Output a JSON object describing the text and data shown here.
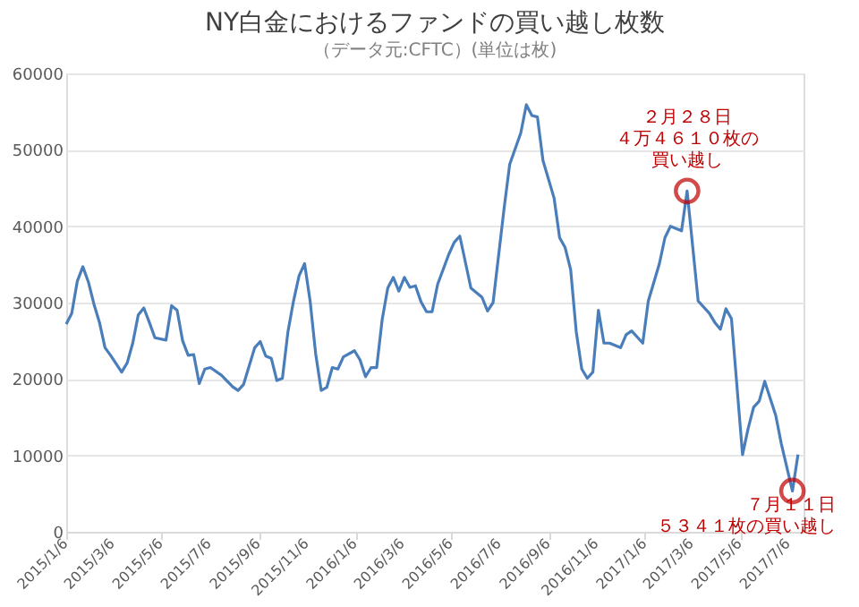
{
  "chart_data": {
    "type": "line",
    "title": "NY白金におけるファンドの買い越し枚数",
    "subtitle": "（データ元:CFTC）(単位は枚)",
    "x": [
      "2015-01-06",
      "2015-01-13",
      "2015-01-20",
      "2015-01-27",
      "2015-02-03",
      "2015-02-10",
      "2015-02-17",
      "2015-02-24",
      "2015-03-03",
      "2015-03-17",
      "2015-03-24",
      "2015-03-31",
      "2015-04-07",
      "2015-04-14",
      "2015-04-21",
      "2015-04-28",
      "2015-05-12",
      "2015-05-19",
      "2015-05-26",
      "2015-06-02",
      "2015-06-09",
      "2015-06-16",
      "2015-06-23",
      "2015-06-30",
      "2015-07-07",
      "2015-07-21",
      "2015-08-04",
      "2015-08-11",
      "2015-08-18",
      "2015-08-25",
      "2015-09-01",
      "2015-09-08",
      "2015-09-15",
      "2015-09-22",
      "2015-09-29",
      "2015-10-06",
      "2015-10-13",
      "2015-10-20",
      "2015-10-27",
      "2015-11-03",
      "2015-11-10",
      "2015-11-17",
      "2015-11-24",
      "2015-12-01",
      "2015-12-08",
      "2015-12-15",
      "2015-12-22",
      "2016-01-05",
      "2016-01-12",
      "2016-01-19",
      "2016-01-26",
      "2016-02-02",
      "2016-02-09",
      "2016-02-16",
      "2016-02-23",
      "2016-03-01",
      "2016-03-08",
      "2016-03-15",
      "2016-03-22",
      "2016-03-29",
      "2016-04-05",
      "2016-04-12",
      "2016-04-19",
      "2016-05-03",
      "2016-05-10",
      "2016-05-17",
      "2016-05-31",
      "2016-06-14",
      "2016-06-21",
      "2016-06-28",
      "2016-07-12",
      "2016-07-19",
      "2016-08-02",
      "2016-08-09",
      "2016-08-16",
      "2016-08-23",
      "2016-08-30",
      "2016-09-13",
      "2016-09-20",
      "2016-09-27",
      "2016-10-04",
      "2016-10-11",
      "2016-10-18",
      "2016-10-25",
      "2016-11-01",
      "2016-11-08",
      "2016-11-15",
      "2016-11-22",
      "2016-12-06",
      "2016-12-13",
      "2016-12-20",
      "2017-01-03",
      "2017-01-10",
      "2017-01-24",
      "2017-01-31",
      "2017-02-07",
      "2017-02-21",
      "2017-02-28",
      "2017-03-14",
      "2017-03-28",
      "2017-04-04",
      "2017-04-11",
      "2017-04-18",
      "2017-04-25",
      "2017-05-09",
      "2017-05-16",
      "2017-05-23",
      "2017-05-30",
      "2017-06-06",
      "2017-06-20",
      "2017-06-27",
      "2017-07-11",
      "2017-07-18"
    ],
    "series": [
      {
        "color": "#4a7ebb",
        "values": [
          27200,
          28600,
          32800,
          34700,
          32700,
          29800,
          27400,
          24100,
          23100,
          20900,
          22100,
          24700,
          28400,
          29300,
          27400,
          25400,
          25100,
          29600,
          29000,
          25000,
          23100,
          23200,
          19400,
          21300,
          21500,
          20500,
          19000,
          18500,
          19300,
          21700,
          24100,
          24900,
          23000,
          22700,
          19800,
          20100,
          26200,
          30200,
          33500,
          35100,
          30200,
          23300,
          18500,
          18900,
          21500,
          21300,
          22900,
          23700,
          22500,
          20300,
          21500,
          21500,
          27800,
          31900,
          33300,
          31500,
          33300,
          32000,
          32200,
          30100,
          28800,
          28800,
          32400,
          36300,
          37900,
          38700,
          31900,
          30700,
          28900,
          30000,
          42400,
          48100,
          52200,
          55900,
          54500,
          54300,
          48600,
          43700,
          38500,
          37200,
          34300,
          26200,
          21300,
          20100,
          20900,
          29000,
          24700,
          24700,
          24100,
          25800,
          26300,
          24700,
          30200,
          35100,
          38500,
          40000,
          39400,
          44610,
          30200,
          28600,
          27400,
          26500,
          29200,
          27900,
          10100,
          13500,
          16300,
          17100,
          19700,
          15200,
          11500,
          5341,
          10100
        ]
      }
    ],
    "xlim": [
      "2015-01-06",
      "2017-07-25"
    ],
    "xticks": [
      {
        "value": "2015-01-06",
        "label": "2015/1/6"
      },
      {
        "value": "2015-03-06",
        "label": "2015/3/6"
      },
      {
        "value": "2015-05-06",
        "label": "2015/5/6"
      },
      {
        "value": "2015-07-06",
        "label": "2015/7/6"
      },
      {
        "value": "2015-09-06",
        "label": "2015/9/6"
      },
      {
        "value": "2015-11-06",
        "label": "2015/11/6"
      },
      {
        "value": "2016-01-06",
        "label": "2016/1/6"
      },
      {
        "value": "2016-03-06",
        "label": "2016/3/6"
      },
      {
        "value": "2016-05-06",
        "label": "2016/5/6"
      },
      {
        "value": "2016-07-06",
        "label": "2016/7/6"
      },
      {
        "value": "2016-09-06",
        "label": "2016/9/6"
      },
      {
        "value": "2016-11-06",
        "label": "2016/11/6"
      },
      {
        "value": "2017-01-06",
        "label": "2017/1/6"
      },
      {
        "value": "2017-03-06",
        "label": "2017/3/6"
      },
      {
        "value": "2017-05-06",
        "label": "2017/5/6"
      },
      {
        "value": "2017-07-06",
        "label": "2017/7/6"
      }
    ],
    "ylim": [
      0,
      60000
    ],
    "yticks": [
      0,
      10000,
      20000,
      30000,
      40000,
      50000,
      60000
    ],
    "grid": "y",
    "annotations": [
      "２月２８日",
      "４万４６１０枚の",
      {
        "text": "買い越し",
        "x": "2017-02-28",
        "y": 44610
      },
      {
        "text": "７月１１日",
        "x": "2017-07-11",
        "y": 5341
      },
      "５３４１枚の買い越し"
    ]
  }
}
